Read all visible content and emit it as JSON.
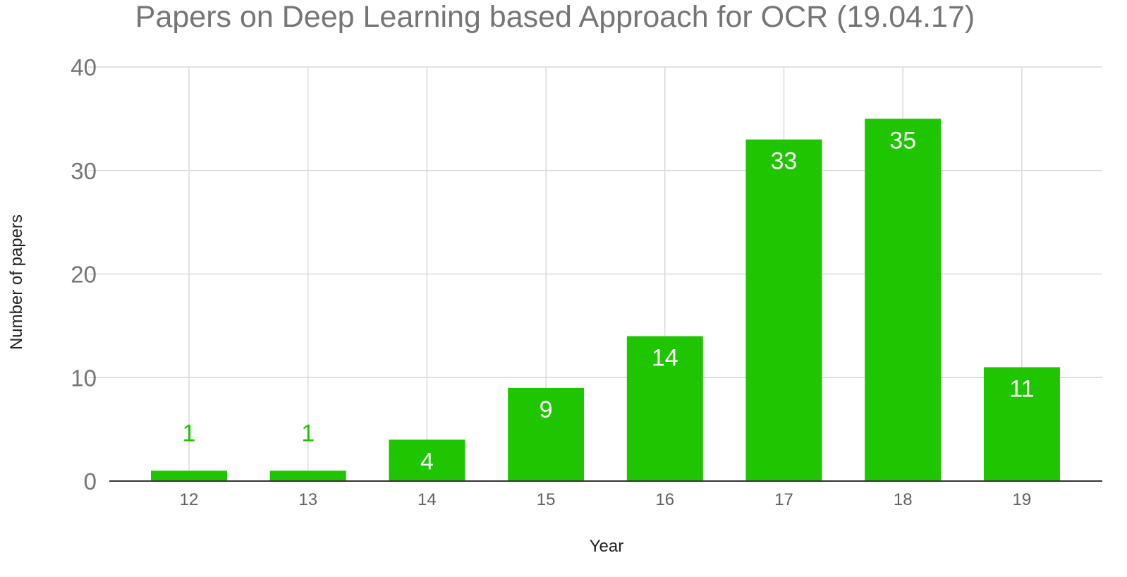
{
  "chart_data": {
    "type": "bar",
    "title": "Papers on Deep Learning based Approach for OCR (19.04.17)",
    "xlabel": "Year",
    "ylabel": "Number of papers",
    "categories": [
      "12",
      "13",
      "14",
      "15",
      "16",
      "17",
      "18",
      "19"
    ],
    "values": [
      1,
      1,
      4,
      9,
      14,
      33,
      35,
      11
    ],
    "ylim": [
      0,
      40
    ],
    "yticks": [
      0,
      10,
      20,
      30,
      40
    ],
    "grid": true,
    "legend": "none",
    "colors": {
      "bar": "#1fc600",
      "label_inside": "#ffffff",
      "label_outside": "#1fc600",
      "grid": "#d9d9d9",
      "axis": "#333333"
    }
  }
}
